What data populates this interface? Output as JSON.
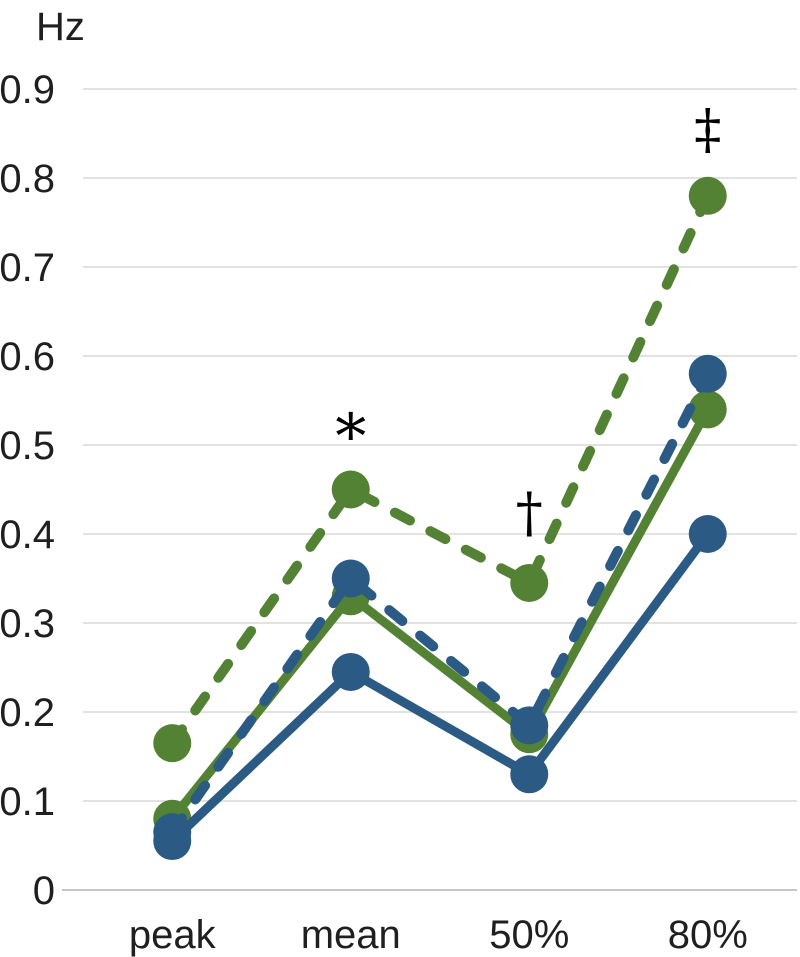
{
  "chart_data": {
    "type": "line",
    "title": "",
    "ylabel": "Hz",
    "xlabel": "",
    "ylim": [
      0,
      0.9
    ],
    "y_tick_labels": [
      "0",
      "0.1",
      "0.2",
      "0.3",
      "0.4",
      "0.5",
      "0.6",
      "0.7",
      "0.8",
      "0.9"
    ],
    "grid": true,
    "legend_position": "none",
    "categories": [
      "peak",
      "mean",
      "50%",
      "80%"
    ],
    "series": [
      {
        "name": "green-solid",
        "color": "#548235",
        "style": "solid",
        "values": [
          0.08,
          0.33,
          0.175,
          0.54
        ]
      },
      {
        "name": "green-dashed",
        "color": "#548235",
        "style": "dashed",
        "values": [
          0.165,
          0.45,
          0.345,
          0.78
        ]
      },
      {
        "name": "blue-solid",
        "color": "#2B5B85",
        "style": "solid",
        "values": [
          0.055,
          0.245,
          0.13,
          0.4
        ]
      },
      {
        "name": "blue-dashed",
        "color": "#2B5B85",
        "style": "dashed",
        "values": [
          0.065,
          0.35,
          0.185,
          0.58
        ]
      }
    ],
    "annotations": [
      {
        "symbol": "*",
        "category": "mean",
        "category_index": 1,
        "value": 0.52
      },
      {
        "symbol": "†",
        "category": "50%",
        "category_index": 2,
        "value": 0.425
      },
      {
        "symbol": "‡",
        "category": "80%",
        "category_index": 3,
        "value": 0.856
      }
    ],
    "colors": {
      "green": "#548235",
      "blue": "#2B5B85",
      "gridline": "#d9d9d9",
      "axis_line": "#c6c6c6",
      "text": "#1f1f1f",
      "background": "#ffffff"
    }
  }
}
